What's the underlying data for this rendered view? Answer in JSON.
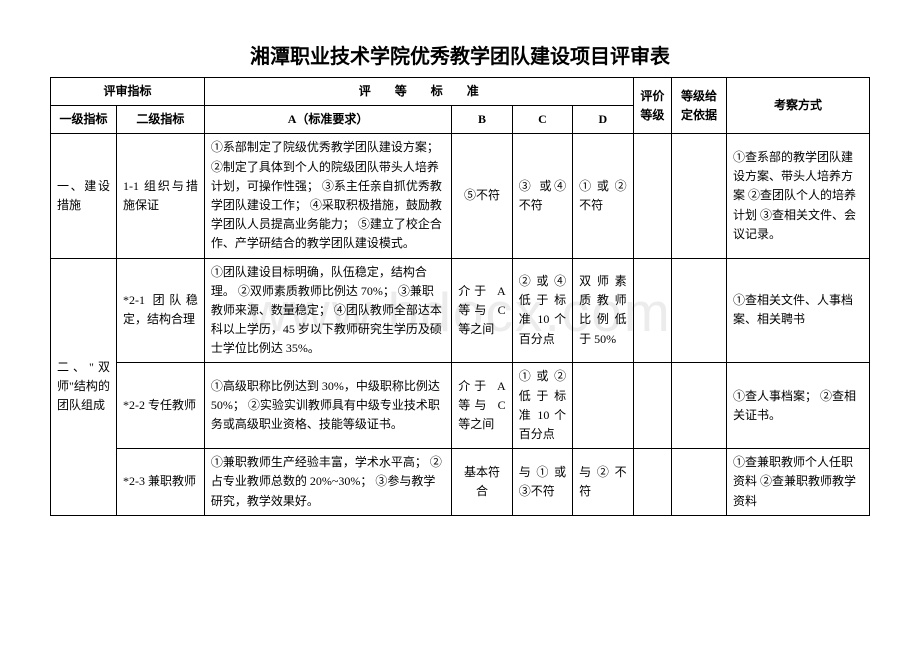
{
  "title": "湘潭职业技术学院优秀教学团队建设项目评审表",
  "watermark": "www.bdocx.com",
  "header": {
    "eval_indicator": "评审指标",
    "eval_standard": "评　　等　　标　　准",
    "eval_level": "评价等级",
    "grade_basis": "等级给定依据",
    "method": "考察方式",
    "level1": "一级指标",
    "level2": "二级指标",
    "a": "A（标准要求）",
    "b": "B",
    "c": "C",
    "d": "D"
  },
  "rows": {
    "r1": {
      "level1": "一、建设措施",
      "level2": "1-1 组织与措施保证",
      "a": "①系部制定了院级优秀教学团队建设方案；\n②制定了具体到个人的院级团队带头人培养计划，可操作性强；\n③系主任亲自抓优秀教学团队建设工作；\n④采取积极措施，鼓励教学团队人员提高业务能力；\n⑤建立了校企合作、产学研结合的教学团队建设模式。",
      "b": "⑤不符",
      "c": "③ 或④不符",
      "d": "①或②不符",
      "method": "①查系部的教学团队建设方案、带头人培养方案\n②查团队个人的培养计划\n③查相关文件、会议记录。"
    },
    "r2": {
      "level1": "二、\"双师\"结构的团队组成",
      "level2": "*2-1 团队稳定，结构合理",
      "a": "①团队建设目标明确，队伍稳定，结构合理。\n②双师素质教师比例达 70%；\n③兼职教师来源、数量稳定；\n④团队教师全部达本科以上学历，45 岁以下教师研究生学历及硕士学位比例达 35%。",
      "b": "介于 A 等与 C 等之间",
      "c": "②或④低于标准 10 个百分点",
      "d": "双师素质教师比例低于 50%",
      "method": "①查相关文件、人事档案、相关聘书"
    },
    "r3": {
      "level2": "*2-2 专任教师",
      "a": "①高级职称比例达到 30%，中级职称比例达 50%；\n②实验实训教师具有中级专业技术职务或高级职业资格、技能等级证书。",
      "b": "介于 A 等与 C 等之间",
      "c": "①或②低于标准 10 个百分点",
      "d": "",
      "method": "①查人事档案；\n②查相关证书。"
    },
    "r4": {
      "level2": "*2-3 兼职教师",
      "a": "①兼职教师生产经验丰富，学术水平高；\n②占专业教师总数的 20%~30%；\n③参与教学研究，教学效果好。",
      "b": "基本符合",
      "c": "与①或③不符",
      "d": "与②不符",
      "method": "①查兼职教师个人任职资料\n②查兼职教师教学资料"
    }
  }
}
